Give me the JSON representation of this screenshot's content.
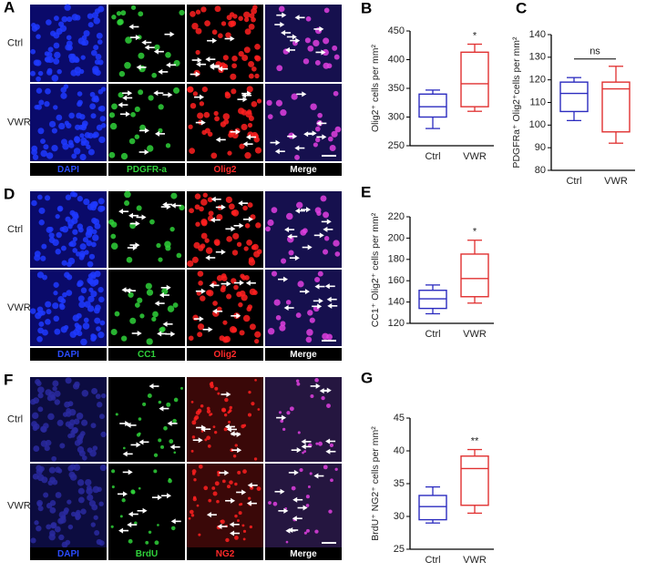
{
  "images": [
    {
      "letter": "A",
      "rows": [
        "Ctrl",
        "VWR"
      ],
      "channels": [
        "DAPI",
        "PDGFR-a",
        "Olig2",
        "Merge"
      ]
    },
    {
      "letter": "D",
      "rows": [
        "Ctrl",
        "VWR"
      ],
      "channels": [
        "DAPI",
        "CC1",
        "Olig2",
        "Merge"
      ]
    },
    {
      "letter": "F",
      "rows": [
        "Ctrl",
        "VWR"
      ],
      "channels": [
        "DAPI",
        "BrdU",
        "NG2",
        "Merge"
      ]
    }
  ],
  "chart_data": [
    {
      "type": "box",
      "letter": "B",
      "ylabel": "Olig2⁺ cells per mm²",
      "categories": [
        "Ctrl",
        "VWR"
      ],
      "colors": [
        "#2b2bbf",
        "#e03030"
      ],
      "min": [
        280,
        310
      ],
      "q1": [
        300,
        318
      ],
      "median": [
        318,
        358
      ],
      "q3": [
        340,
        413
      ],
      "max": [
        347,
        427
      ],
      "ylim": [
        250,
        450
      ],
      "yticks": [
        250,
        300,
        350,
        400,
        450
      ],
      "annotation": "*"
    },
    {
      "type": "box",
      "letter": "C",
      "ylabel": "PDGFRa⁺ Olig2⁺cells per mm²",
      "categories": [
        "Ctrl",
        "VWR"
      ],
      "colors": [
        "#2b2bbf",
        "#e03030"
      ],
      "min": [
        102,
        92
      ],
      "q1": [
        106,
        97
      ],
      "median": [
        114,
        116
      ],
      "q3": [
        119,
        119
      ],
      "max": [
        121,
        126
      ],
      "ylim": [
        80,
        140
      ],
      "yticks": [
        80,
        90,
        100,
        110,
        120,
        130,
        140
      ],
      "annotation": "ns"
    },
    {
      "type": "box",
      "letter": "E",
      "ylabel": "CC1⁺ Olig2⁺ cells per mm²",
      "categories": [
        "Ctrl",
        "VWR"
      ],
      "colors": [
        "#2b2bbf",
        "#e03030"
      ],
      "min": [
        129,
        139
      ],
      "q1": [
        134,
        145
      ],
      "median": [
        143,
        162
      ],
      "q3": [
        151,
        185
      ],
      "max": [
        156,
        198
      ],
      "ylim": [
        120,
        220
      ],
      "yticks": [
        120,
        140,
        160,
        180,
        200,
        220
      ],
      "annotation": "*"
    },
    {
      "type": "box",
      "letter": "G",
      "ylabel": "BrdU⁺ NG2⁺ cells per mm²",
      "categories": [
        "Ctrl",
        "VWR"
      ],
      "colors": [
        "#2b2bbf",
        "#e03030"
      ],
      "min": [
        29,
        30.5
      ],
      "q1": [
        29.5,
        31.7
      ],
      "median": [
        31.5,
        37.3
      ],
      "q3": [
        33.2,
        39.2
      ],
      "max": [
        34.5,
        40.2
      ],
      "ylim": [
        25,
        45
      ],
      "yticks": [
        25,
        30,
        35,
        40,
        45
      ],
      "annotation": "**"
    }
  ]
}
